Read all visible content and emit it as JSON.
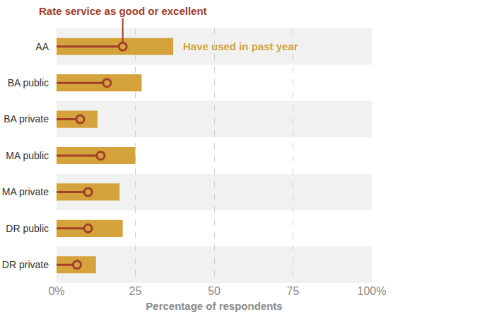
{
  "chart_data": {
    "type": "bar",
    "orientation": "horizontal",
    "categories": [
      "AA",
      "BA public",
      "BA private",
      "MA public",
      "MA private",
      "DR public",
      "DR private"
    ],
    "series": [
      {
        "name": "Have used in past year",
        "type": "bar",
        "color": "#d4a33b",
        "values": [
          37,
          27,
          13,
          25,
          20,
          21,
          12.5
        ]
      },
      {
        "name": "Rate service as good or excellent",
        "type": "lollipop",
        "marker": "circle",
        "color": "#a23e29",
        "values": [
          21,
          16,
          7.5,
          14,
          10,
          10,
          6.5
        ]
      }
    ],
    "xlabel": "Percentage of respondents",
    "xlim": [
      0,
      100
    ],
    "xticks": [
      {
        "value": 0,
        "label": "0%"
      },
      25,
      50,
      75,
      {
        "value": 100,
        "label": "100%"
      }
    ],
    "grid": true
  }
}
